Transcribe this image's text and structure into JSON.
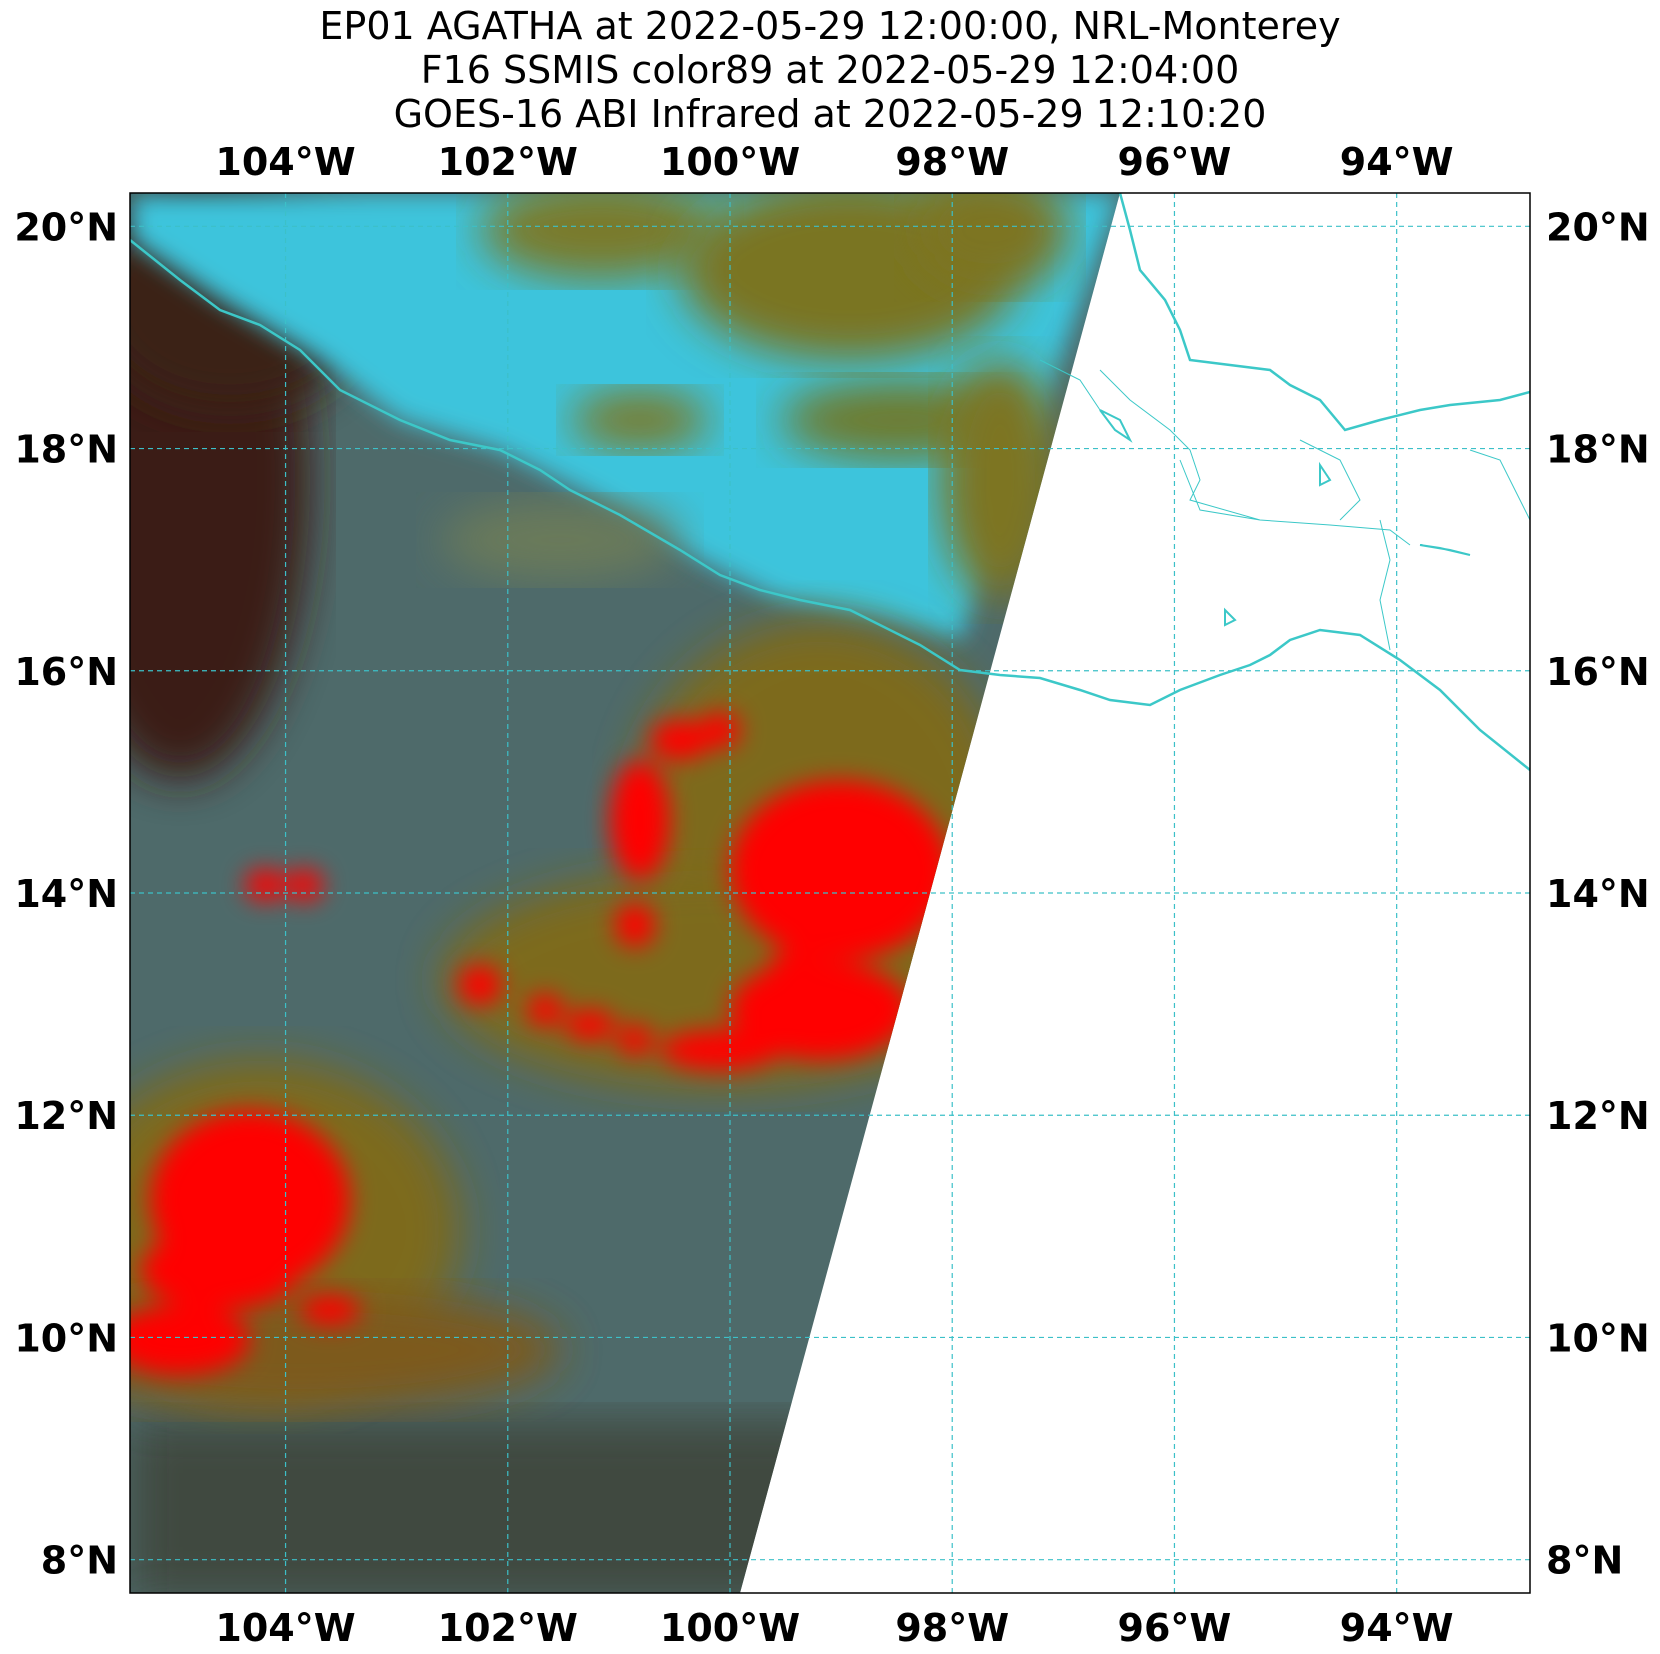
{
  "title": {
    "line1": "EP01 AGATHA at 2022-05-29 12:00:00, NRL-Monterey",
    "line2": "F16 SSMIS color89 at 2022-05-29 12:04:00",
    "line3": "GOES-16 ABI Infrared at 2022-05-29 12:10:20"
  },
  "axes": {
    "lon_range": [
      -105.4,
      -92.8
    ],
    "lat_range": [
      7.7,
      20.3
    ],
    "lon_ticks": [
      {
        "value": -104,
        "label": "104°W"
      },
      {
        "value": -102,
        "label": "102°W"
      },
      {
        "value": -100,
        "label": "100°W"
      },
      {
        "value": -98,
        "label": "98°W"
      },
      {
        "value": -96,
        "label": "96°W"
      },
      {
        "value": -94,
        "label": "94°W"
      }
    ],
    "lat_ticks": [
      {
        "value": 20,
        "label": "20°N"
      },
      {
        "value": 18,
        "label": "18°N"
      },
      {
        "value": 16,
        "label": "16°N"
      },
      {
        "value": 14,
        "label": "14°N"
      },
      {
        "value": 12,
        "label": "12°N"
      },
      {
        "value": 10,
        "label": "10°N"
      },
      {
        "value": 8,
        "label": "8°N"
      }
    ],
    "grid": true
  },
  "colors": {
    "coastline": "#3cc8c8",
    "gridline": "#3cc0c8",
    "ocean_base": "#4a6a6c",
    "land_cyan": "#3cc3dc",
    "land_olive": "#7d7420",
    "convection_red": "#ff0000",
    "dark_brown": "#3a1c14"
  }
}
